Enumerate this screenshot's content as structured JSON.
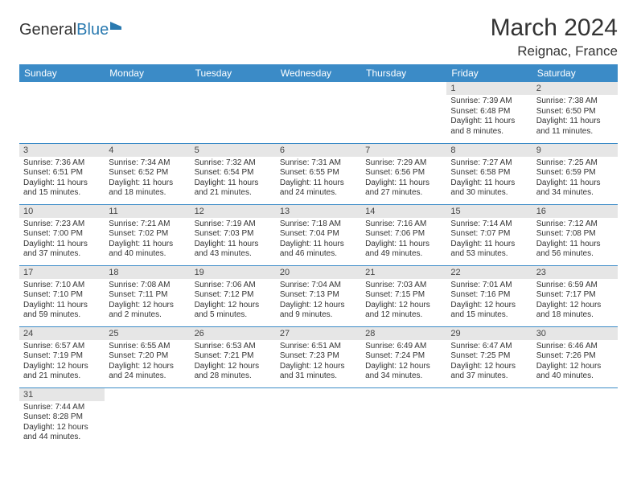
{
  "brand": {
    "general": "General",
    "blue": "Blue"
  },
  "title": "March 2024",
  "location": "Reignac, France",
  "day_headers": [
    "Sunday",
    "Monday",
    "Tuesday",
    "Wednesday",
    "Thursday",
    "Friday",
    "Saturday"
  ],
  "colors": {
    "header_bg": "#3b8bc7",
    "header_text": "#ffffff",
    "daynum_bg": "#e6e6e6",
    "row_divider": "#3b8bc7",
    "text": "#333333",
    "logo_blue": "#2a7ab0"
  },
  "typography": {
    "title_fontsize": 30,
    "location_fontsize": 17,
    "dayhead_fontsize": 12,
    "body_fontsize": 10
  },
  "weeks": [
    [
      {
        "n": "",
        "lines": []
      },
      {
        "n": "",
        "lines": []
      },
      {
        "n": "",
        "lines": []
      },
      {
        "n": "",
        "lines": []
      },
      {
        "n": "",
        "lines": []
      },
      {
        "n": "1",
        "lines": [
          "Sunrise: 7:39 AM",
          "Sunset: 6:48 PM",
          "Daylight: 11 hours",
          "and 8 minutes."
        ]
      },
      {
        "n": "2",
        "lines": [
          "Sunrise: 7:38 AM",
          "Sunset: 6:50 PM",
          "Daylight: 11 hours",
          "and 11 minutes."
        ]
      }
    ],
    [
      {
        "n": "3",
        "lines": [
          "Sunrise: 7:36 AM",
          "Sunset: 6:51 PM",
          "Daylight: 11 hours",
          "and 15 minutes."
        ]
      },
      {
        "n": "4",
        "lines": [
          "Sunrise: 7:34 AM",
          "Sunset: 6:52 PM",
          "Daylight: 11 hours",
          "and 18 minutes."
        ]
      },
      {
        "n": "5",
        "lines": [
          "Sunrise: 7:32 AM",
          "Sunset: 6:54 PM",
          "Daylight: 11 hours",
          "and 21 minutes."
        ]
      },
      {
        "n": "6",
        "lines": [
          "Sunrise: 7:31 AM",
          "Sunset: 6:55 PM",
          "Daylight: 11 hours",
          "and 24 minutes."
        ]
      },
      {
        "n": "7",
        "lines": [
          "Sunrise: 7:29 AM",
          "Sunset: 6:56 PM",
          "Daylight: 11 hours",
          "and 27 minutes."
        ]
      },
      {
        "n": "8",
        "lines": [
          "Sunrise: 7:27 AM",
          "Sunset: 6:58 PM",
          "Daylight: 11 hours",
          "and 30 minutes."
        ]
      },
      {
        "n": "9",
        "lines": [
          "Sunrise: 7:25 AM",
          "Sunset: 6:59 PM",
          "Daylight: 11 hours",
          "and 34 minutes."
        ]
      }
    ],
    [
      {
        "n": "10",
        "lines": [
          "Sunrise: 7:23 AM",
          "Sunset: 7:00 PM",
          "Daylight: 11 hours",
          "and 37 minutes."
        ]
      },
      {
        "n": "11",
        "lines": [
          "Sunrise: 7:21 AM",
          "Sunset: 7:02 PM",
          "Daylight: 11 hours",
          "and 40 minutes."
        ]
      },
      {
        "n": "12",
        "lines": [
          "Sunrise: 7:19 AM",
          "Sunset: 7:03 PM",
          "Daylight: 11 hours",
          "and 43 minutes."
        ]
      },
      {
        "n": "13",
        "lines": [
          "Sunrise: 7:18 AM",
          "Sunset: 7:04 PM",
          "Daylight: 11 hours",
          "and 46 minutes."
        ]
      },
      {
        "n": "14",
        "lines": [
          "Sunrise: 7:16 AM",
          "Sunset: 7:06 PM",
          "Daylight: 11 hours",
          "and 49 minutes."
        ]
      },
      {
        "n": "15",
        "lines": [
          "Sunrise: 7:14 AM",
          "Sunset: 7:07 PM",
          "Daylight: 11 hours",
          "and 53 minutes."
        ]
      },
      {
        "n": "16",
        "lines": [
          "Sunrise: 7:12 AM",
          "Sunset: 7:08 PM",
          "Daylight: 11 hours",
          "and 56 minutes."
        ]
      }
    ],
    [
      {
        "n": "17",
        "lines": [
          "Sunrise: 7:10 AM",
          "Sunset: 7:10 PM",
          "Daylight: 11 hours",
          "and 59 minutes."
        ]
      },
      {
        "n": "18",
        "lines": [
          "Sunrise: 7:08 AM",
          "Sunset: 7:11 PM",
          "Daylight: 12 hours",
          "and 2 minutes."
        ]
      },
      {
        "n": "19",
        "lines": [
          "Sunrise: 7:06 AM",
          "Sunset: 7:12 PM",
          "Daylight: 12 hours",
          "and 5 minutes."
        ]
      },
      {
        "n": "20",
        "lines": [
          "Sunrise: 7:04 AM",
          "Sunset: 7:13 PM",
          "Daylight: 12 hours",
          "and 9 minutes."
        ]
      },
      {
        "n": "21",
        "lines": [
          "Sunrise: 7:03 AM",
          "Sunset: 7:15 PM",
          "Daylight: 12 hours",
          "and 12 minutes."
        ]
      },
      {
        "n": "22",
        "lines": [
          "Sunrise: 7:01 AM",
          "Sunset: 7:16 PM",
          "Daylight: 12 hours",
          "and 15 minutes."
        ]
      },
      {
        "n": "23",
        "lines": [
          "Sunrise: 6:59 AM",
          "Sunset: 7:17 PM",
          "Daylight: 12 hours",
          "and 18 minutes."
        ]
      }
    ],
    [
      {
        "n": "24",
        "lines": [
          "Sunrise: 6:57 AM",
          "Sunset: 7:19 PM",
          "Daylight: 12 hours",
          "and 21 minutes."
        ]
      },
      {
        "n": "25",
        "lines": [
          "Sunrise: 6:55 AM",
          "Sunset: 7:20 PM",
          "Daylight: 12 hours",
          "and 24 minutes."
        ]
      },
      {
        "n": "26",
        "lines": [
          "Sunrise: 6:53 AM",
          "Sunset: 7:21 PM",
          "Daylight: 12 hours",
          "and 28 minutes."
        ]
      },
      {
        "n": "27",
        "lines": [
          "Sunrise: 6:51 AM",
          "Sunset: 7:23 PM",
          "Daylight: 12 hours",
          "and 31 minutes."
        ]
      },
      {
        "n": "28",
        "lines": [
          "Sunrise: 6:49 AM",
          "Sunset: 7:24 PM",
          "Daylight: 12 hours",
          "and 34 minutes."
        ]
      },
      {
        "n": "29",
        "lines": [
          "Sunrise: 6:47 AM",
          "Sunset: 7:25 PM",
          "Daylight: 12 hours",
          "and 37 minutes."
        ]
      },
      {
        "n": "30",
        "lines": [
          "Sunrise: 6:46 AM",
          "Sunset: 7:26 PM",
          "Daylight: 12 hours",
          "and 40 minutes."
        ]
      }
    ],
    [
      {
        "n": "31",
        "lines": [
          "Sunrise: 7:44 AM",
          "Sunset: 8:28 PM",
          "Daylight: 12 hours",
          "and 44 minutes."
        ]
      },
      {
        "n": "",
        "lines": []
      },
      {
        "n": "",
        "lines": []
      },
      {
        "n": "",
        "lines": []
      },
      {
        "n": "",
        "lines": []
      },
      {
        "n": "",
        "lines": []
      },
      {
        "n": "",
        "lines": []
      }
    ]
  ]
}
